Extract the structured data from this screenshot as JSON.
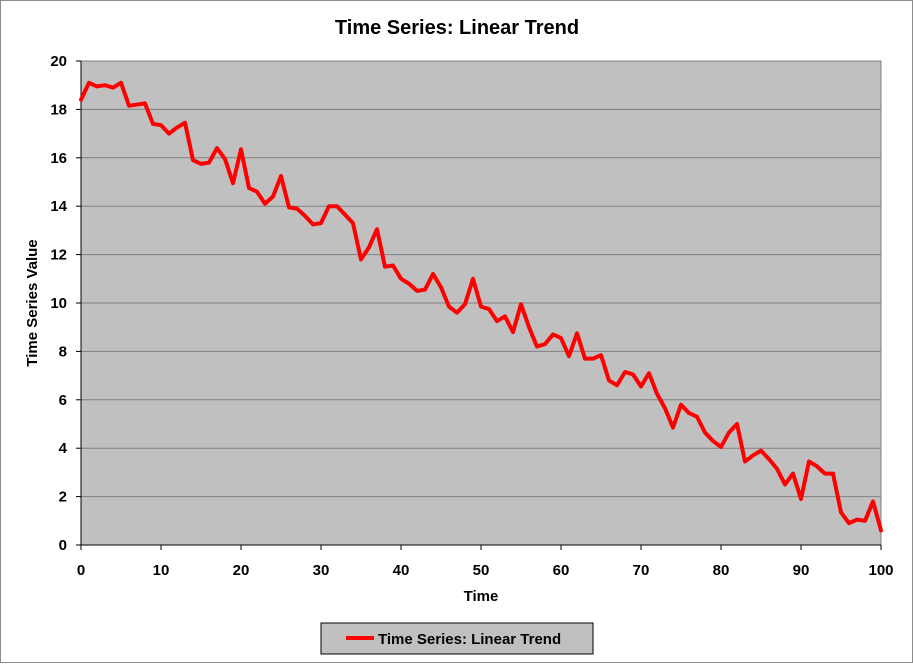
{
  "chart_data": {
    "type": "line",
    "title": "Time Series: Linear Trend",
    "xlabel": "Time",
    "ylabel": "Time Series Value",
    "xlim": [
      0,
      100
    ],
    "ylim": [
      0,
      20
    ],
    "x_ticks": [
      0,
      10,
      20,
      30,
      40,
      50,
      60,
      70,
      80,
      90,
      100
    ],
    "y_ticks": [
      0,
      2,
      4,
      6,
      8,
      10,
      12,
      14,
      16,
      18,
      20
    ],
    "grid": "horizontal",
    "plot_background": "#c0c0c0",
    "legend_position": "bottom",
    "series": [
      {
        "name": "Time Series: Linear Trend",
        "color": "#ff0000",
        "x": [
          0,
          1,
          2,
          3,
          4,
          5,
          6,
          7,
          8,
          9,
          10,
          11,
          12,
          13,
          14,
          15,
          16,
          17,
          18,
          19,
          20,
          21,
          22,
          23,
          24,
          25,
          26,
          27,
          28,
          29,
          30,
          31,
          32,
          33,
          34,
          35,
          36,
          37,
          38,
          39,
          40,
          41,
          42,
          43,
          44,
          45,
          46,
          47,
          48,
          49,
          50,
          51,
          52,
          53,
          54,
          55,
          56,
          57,
          58,
          59,
          60,
          61,
          62,
          63,
          64,
          65,
          66,
          67,
          68,
          69,
          70,
          71,
          72,
          73,
          74,
          75,
          76,
          77,
          78,
          79,
          80,
          81,
          82,
          83,
          84,
          85,
          86,
          87,
          88,
          89,
          90,
          91,
          92,
          93,
          94,
          95,
          96,
          97,
          98,
          99,
          100
        ],
        "values": [
          18.4,
          19.1,
          18.95,
          19.0,
          18.9,
          19.1,
          18.15,
          18.2,
          18.25,
          17.4,
          17.35,
          17.0,
          17.25,
          17.45,
          15.9,
          15.75,
          15.8,
          16.4,
          15.95,
          14.95,
          16.35,
          14.75,
          14.6,
          14.1,
          14.4,
          15.25,
          13.95,
          13.9,
          13.6,
          13.25,
          13.3,
          14.0,
          14.0,
          13.65,
          13.3,
          11.8,
          12.3,
          13.05,
          11.5,
          11.55,
          11.0,
          10.8,
          10.5,
          10.55,
          11.2,
          10.65,
          9.85,
          9.6,
          9.95,
          11.0,
          9.85,
          9.75,
          9.25,
          9.45,
          8.8,
          9.95,
          9.0,
          8.2,
          8.3,
          8.7,
          8.55,
          7.8,
          8.75,
          7.7,
          7.7,
          7.85,
          6.8,
          6.6,
          7.15,
          7.05,
          6.55,
          7.1,
          6.25,
          5.65,
          4.85,
          5.8,
          5.45,
          5.3,
          4.65,
          4.3,
          4.05,
          4.65,
          5.0,
          3.45,
          3.7,
          3.9,
          3.55,
          3.15,
          2.5,
          2.95,
          1.9,
          3.45,
          3.25,
          2.95,
          2.95,
          1.35,
          0.9,
          1.05,
          1.0,
          1.8,
          0.6
        ]
      }
    ]
  }
}
